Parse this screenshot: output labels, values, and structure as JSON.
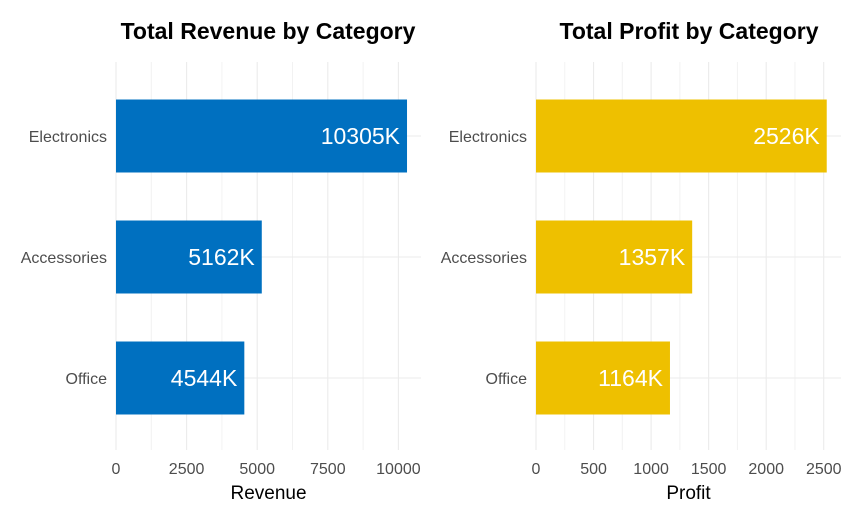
{
  "chart_data": [
    {
      "type": "bar",
      "orientation": "horizontal",
      "title": "Total Revenue by Category",
      "xlabel": "Revenue",
      "ylabel": "",
      "categories": [
        "Electronics",
        "Accessories",
        "Office"
      ],
      "values": [
        10305,
        5162,
        4544
      ],
      "data_labels": [
        "10305K",
        "5162K",
        "4544K"
      ],
      "xlim": [
        0,
        10800
      ],
      "xticks": [
        0,
        2500,
        5000,
        7500,
        10000
      ],
      "xtick_labels": [
        "0",
        "2500",
        "5000",
        "7500",
        "10000"
      ],
      "bar_color": "#0070C0",
      "grid": true,
      "legend": "none"
    },
    {
      "type": "bar",
      "orientation": "horizontal",
      "title": "Total Profit by Category",
      "xlabel": "Profit",
      "ylabel": "",
      "categories": [
        "Electronics",
        "Accessories",
        "Office"
      ],
      "values": [
        2526,
        1357,
        1164
      ],
      "data_labels": [
        "2526K",
        "1357K",
        "1164K"
      ],
      "xlim": [
        0,
        2650
      ],
      "xticks": [
        0,
        500,
        1000,
        1500,
        2000,
        2500
      ],
      "xtick_labels": [
        "0",
        "500",
        "1000",
        "1500",
        "2000",
        "2500"
      ],
      "bar_color": "#EEC000",
      "grid": true,
      "legend": "none"
    }
  ]
}
